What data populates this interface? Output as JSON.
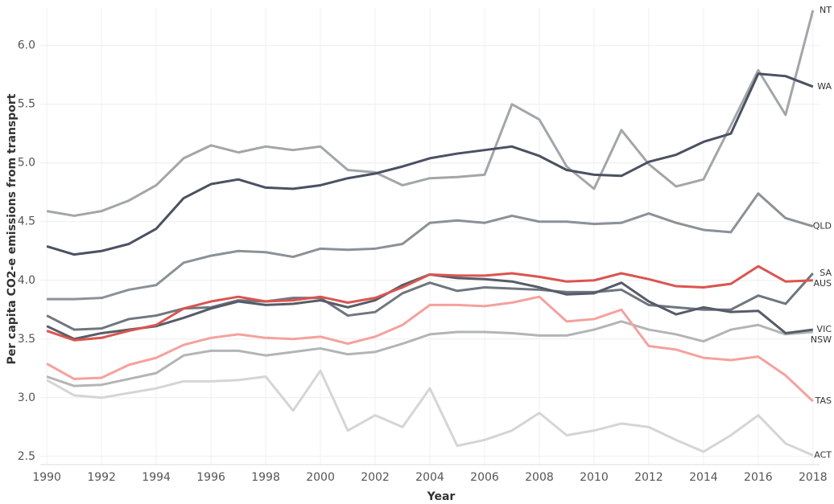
{
  "chart_data": {
    "type": "line",
    "x_label": "Year",
    "y_label": "Per capita CO2-e emissions from transport",
    "x": [
      1990,
      1991,
      1992,
      1993,
      1994,
      1995,
      1996,
      1997,
      1998,
      1999,
      2000,
      2001,
      2002,
      2003,
      2004,
      2005,
      2006,
      2007,
      2008,
      2009,
      2010,
      2011,
      2012,
      2013,
      2014,
      2015,
      2016,
      2017,
      2018
    ],
    "xlim": [
      1989.76,
      2018.24
    ],
    "xticks": [
      1990,
      1992,
      1994,
      1996,
      1998,
      2000,
      2002,
      2004,
      2006,
      2008,
      2010,
      2012,
      2014,
      2016,
      2018
    ],
    "ylim": [
      2.43,
      6.32
    ],
    "yticks": [
      {
        "value": 2.5,
        "label": "2.5"
      },
      {
        "value": 3,
        "label": "3.0"
      },
      {
        "value": 3.5,
        "label": "3.5"
      },
      {
        "value": 4,
        "label": "4.0"
      },
      {
        "value": 4.5,
        "label": "4.5"
      },
      {
        "value": 5,
        "label": "5.0"
      },
      {
        "value": 5.5,
        "label": "5.5"
      },
      {
        "value": 6,
        "label": "6.0"
      }
    ],
    "grid": true,
    "series": [
      {
        "name": "NT",
        "color": "#a2a6a8",
        "values": [
          4.59,
          4.55,
          4.59,
          4.68,
          4.81,
          5.04,
          5.15,
          5.09,
          5.14,
          5.11,
          5.14,
          4.94,
          4.92,
          4.81,
          4.87,
          4.88,
          4.9,
          5.5,
          5.37,
          4.97,
          4.78,
          5.28,
          4.99,
          4.8,
          4.86,
          5.32,
          5.79,
          5.41,
          6.3
        ]
      },
      {
        "name": "WA",
        "color": "#4b5161",
        "values": [
          4.29,
          4.22,
          4.25,
          4.31,
          4.44,
          4.7,
          4.82,
          4.86,
          4.79,
          4.78,
          4.81,
          4.87,
          4.91,
          4.97,
          5.04,
          5.08,
          5.11,
          5.14,
          5.06,
          4.94,
          4.9,
          4.89,
          5.01,
          5.07,
          5.18,
          5.25,
          5.76,
          5.74,
          5.65
        ]
      },
      {
        "name": "QLD",
        "color": "#8b9197",
        "values": [
          3.84,
          3.84,
          3.85,
          3.92,
          3.96,
          4.15,
          4.21,
          4.25,
          4.24,
          4.2,
          4.27,
          4.26,
          4.27,
          4.31,
          4.49,
          4.51,
          4.49,
          4.55,
          4.5,
          4.5,
          4.48,
          4.49,
          4.57,
          4.49,
          4.43,
          4.41,
          4.74,
          4.53,
          4.46
        ]
      },
      {
        "name": "NSW",
        "color": "#b2b5b7",
        "values": [
          3.18,
          3.1,
          3.11,
          3.16,
          3.21,
          3.36,
          3.4,
          3.4,
          3.36,
          3.39,
          3.42,
          3.37,
          3.39,
          3.46,
          3.54,
          3.56,
          3.56,
          3.55,
          3.53,
          3.53,
          3.58,
          3.65,
          3.58,
          3.54,
          3.48,
          3.58,
          3.62,
          3.54,
          3.56
        ]
      },
      {
        "name": "ACT",
        "color": "#d5d5d5",
        "values": [
          3.15,
          3.02,
          3.0,
          3.04,
          3.08,
          3.14,
          3.14,
          3.15,
          3.18,
          2.89,
          3.23,
          2.72,
          2.85,
          2.75,
          3.08,
          2.59,
          2.64,
          2.72,
          2.87,
          2.68,
          2.72,
          2.78,
          2.75,
          2.64,
          2.54,
          2.68,
          2.85,
          2.61,
          2.51
        ]
      },
      {
        "name": "TAS",
        "color": "#f5a19d",
        "values": [
          3.29,
          3.16,
          3.17,
          3.28,
          3.34,
          3.45,
          3.51,
          3.54,
          3.51,
          3.5,
          3.52,
          3.46,
          3.52,
          3.62,
          3.79,
          3.79,
          3.78,
          3.81,
          3.86,
          3.65,
          3.67,
          3.75,
          3.44,
          3.41,
          3.34,
          3.32,
          3.35,
          3.19,
          2.97
        ]
      },
      {
        "name": "SA",
        "color": "#6f767f",
        "values": [
          3.7,
          3.58,
          3.59,
          3.67,
          3.7,
          3.76,
          3.77,
          3.83,
          3.82,
          3.85,
          3.85,
          3.7,
          3.73,
          3.89,
          3.98,
          3.91,
          3.94,
          3.93,
          3.92,
          3.9,
          3.9,
          3.92,
          3.79,
          3.77,
          3.75,
          3.75,
          3.87,
          3.8,
          4.06
        ]
      },
      {
        "name": "VIC",
        "color": "#565c67",
        "values": [
          3.61,
          3.5,
          3.55,
          3.58,
          3.61,
          3.68,
          3.76,
          3.82,
          3.79,
          3.8,
          3.83,
          3.77,
          3.83,
          3.96,
          4.05,
          4.02,
          4.01,
          3.99,
          3.94,
          3.88,
          3.89,
          3.98,
          3.82,
          3.71,
          3.77,
          3.73,
          3.74,
          3.55,
          3.58
        ]
      },
      {
        "name": "AUS",
        "color": "#db5450",
        "values": [
          3.57,
          3.49,
          3.51,
          3.57,
          3.62,
          3.76,
          3.82,
          3.86,
          3.82,
          3.83,
          3.86,
          3.81,
          3.85,
          3.94,
          4.05,
          4.04,
          4.04,
          4.06,
          4.03,
          3.99,
          4.0,
          4.06,
          4.01,
          3.95,
          3.94,
          3.97,
          4.12,
          3.99,
          4.0
        ]
      }
    ]
  }
}
